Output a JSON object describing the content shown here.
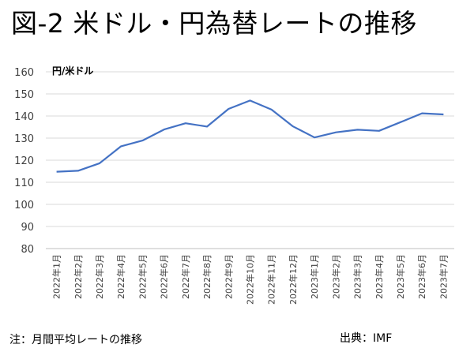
{
  "title": "図-2 米ドル・円為替レートの推移",
  "note": "注：月間平均レートの推移",
  "source": "出典：IMF",
  "chart_data": {
    "type": "line",
    "ylabel": "円/米ドル",
    "xlabel": "",
    "ylim": [
      80,
      160
    ],
    "yticks": [
      80,
      90,
      100,
      110,
      120,
      130,
      140,
      150,
      160
    ],
    "grid": true,
    "line_color": "#4472C4",
    "categories": [
      "2022年1月",
      "2022年2月",
      "2022年3月",
      "2022年4月",
      "2022年5月",
      "2022年6月",
      "2022年7月",
      "2022年8月",
      "2022年9月",
      "2022年10月",
      "2022年11月",
      "2022年12月",
      "2023年1月",
      "2023年2月",
      "2023年3月",
      "2023年4月",
      "2023年5月",
      "2023年6月",
      "2023年7月"
    ],
    "series": [
      {
        "values": [
          114.8,
          115.2,
          118.6,
          126.3,
          128.9,
          133.9,
          136.7,
          135.2,
          143.2,
          147.0,
          142.9,
          135.3,
          130.3,
          132.6,
          133.8,
          133.3,
          137.2,
          141.2,
          140.7
        ]
      }
    ]
  }
}
